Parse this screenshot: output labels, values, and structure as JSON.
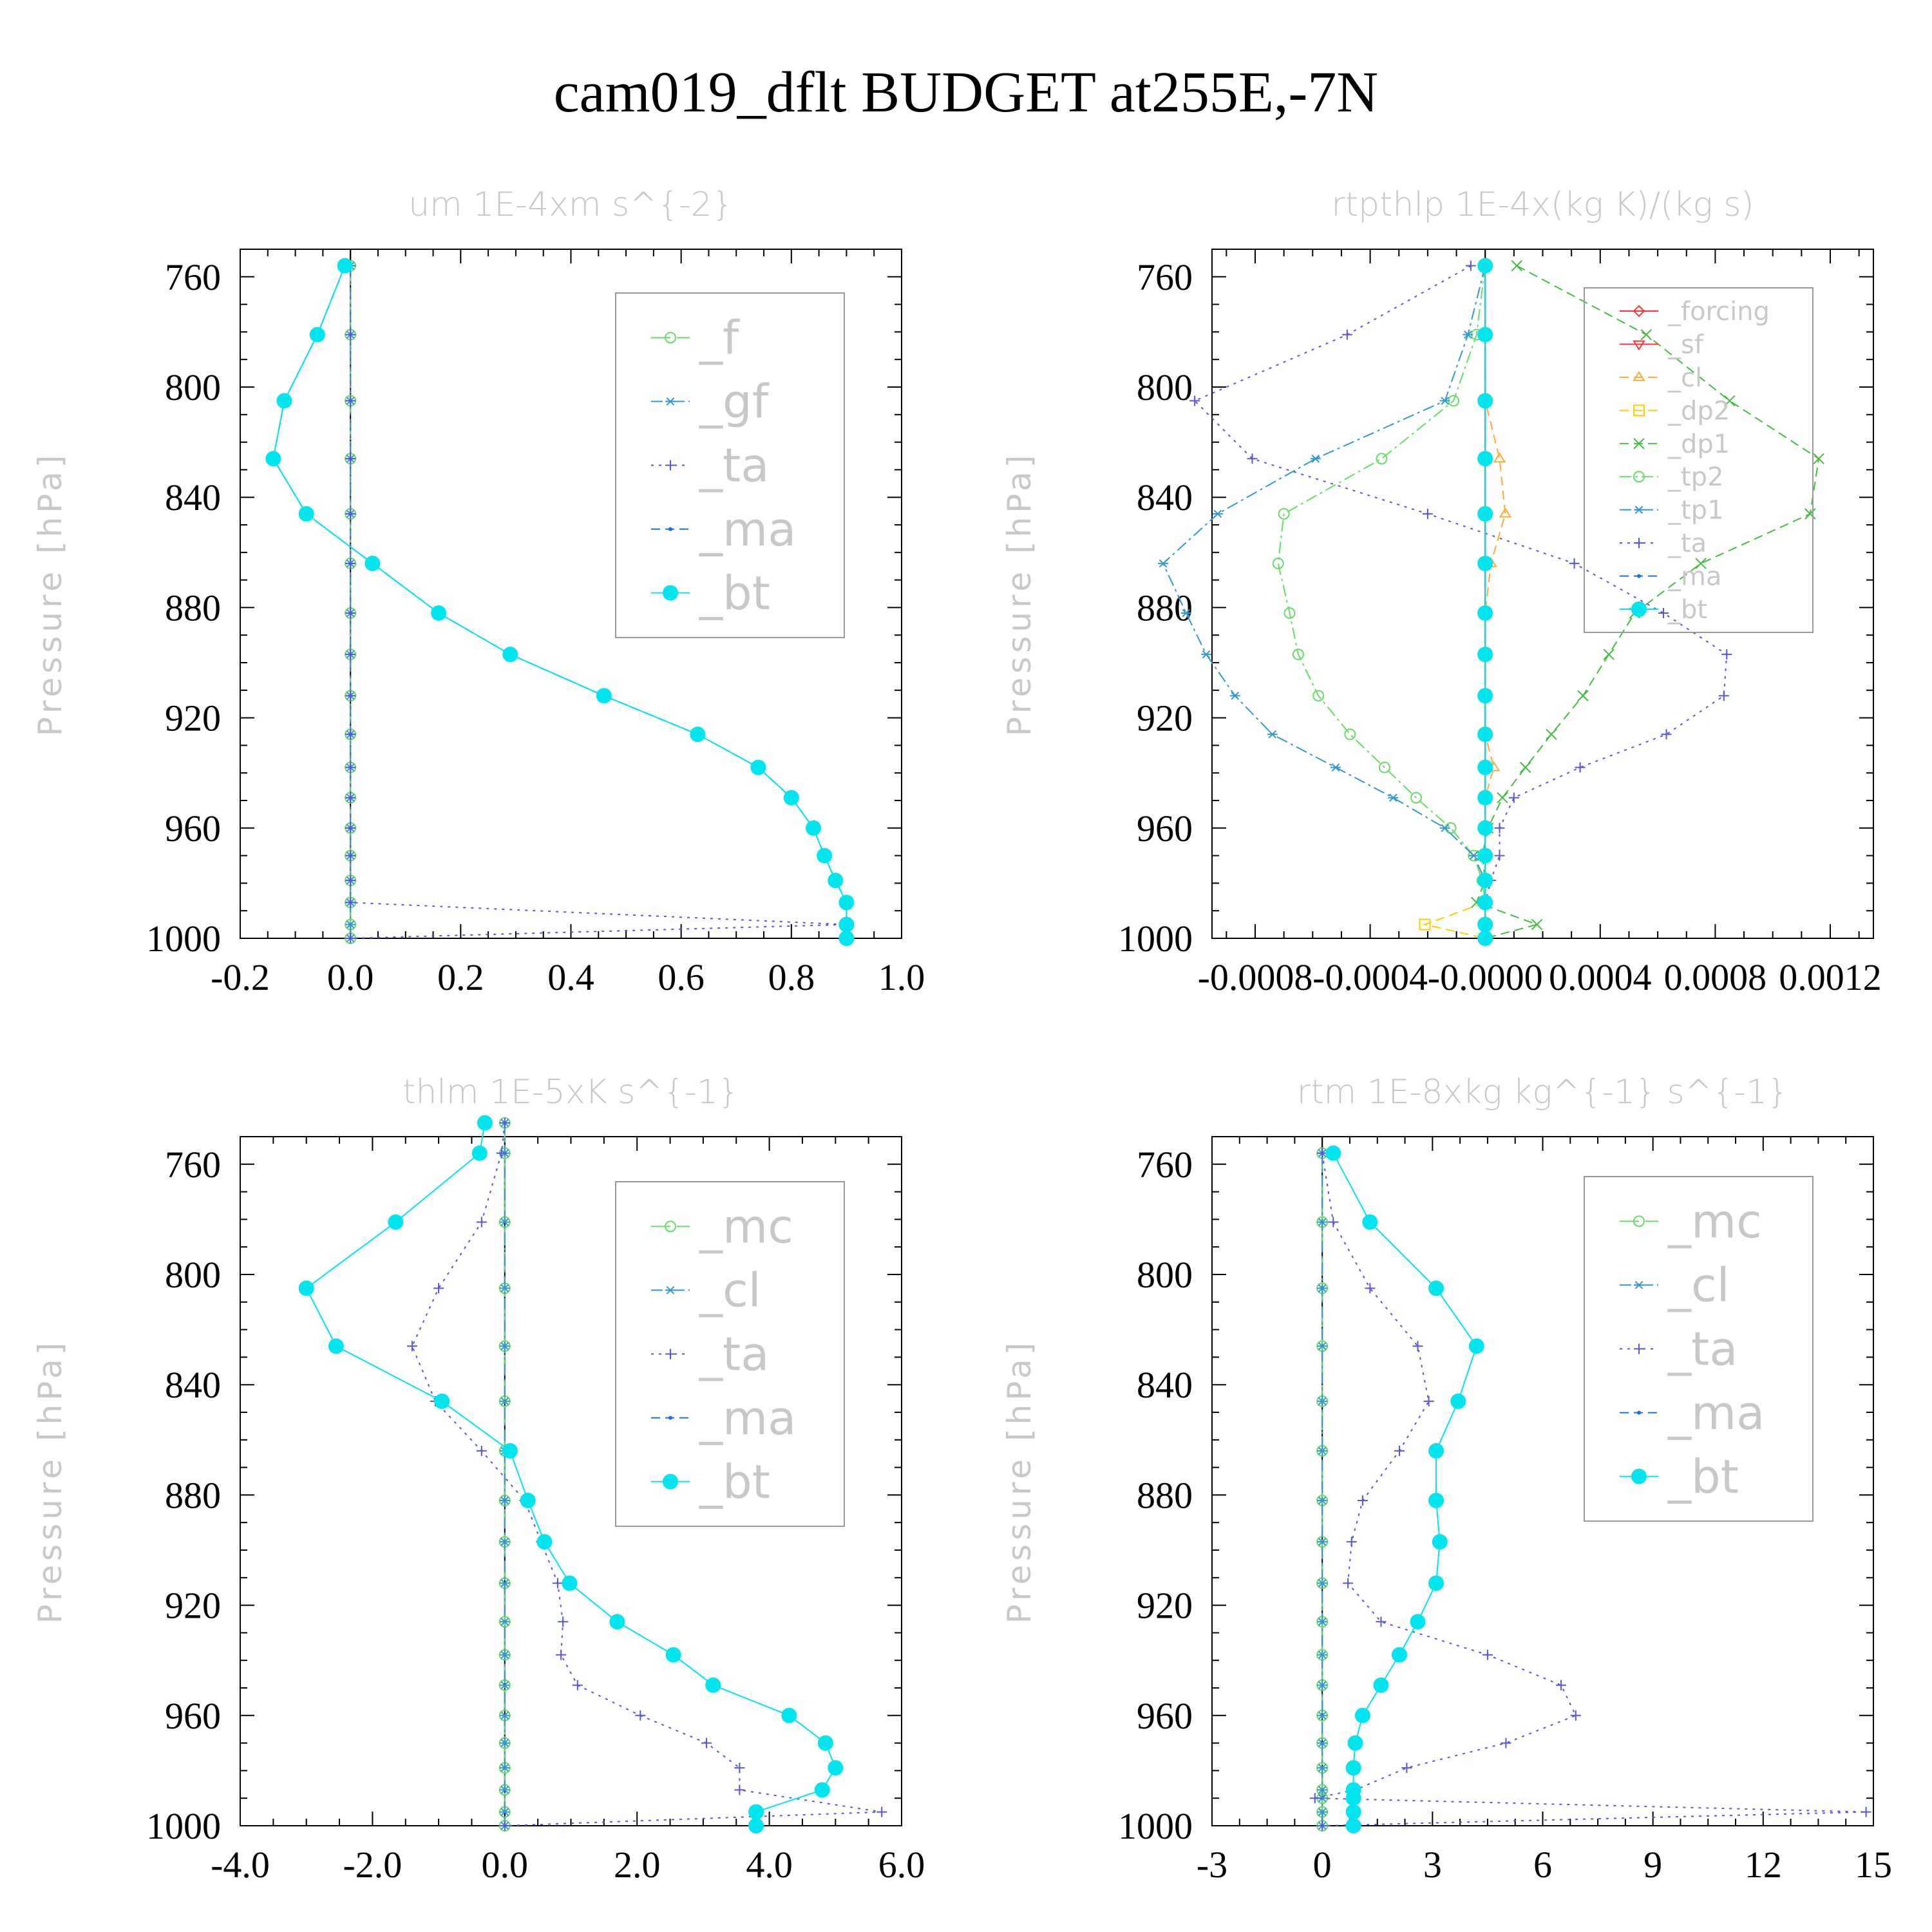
{
  "figure_title": "cam019_dflt  BUDGET at255E,-7N",
  "ylabel": "Pressure [hPa]",
  "colors": {
    "f": "#66dd66",
    "gf": "#3399cc",
    "ta": "#5555dd",
    "ma": "#1a6fd8",
    "bt": "#00e5ee",
    "forcing": "#ff3333",
    "sf": "#ff3333",
    "cl": "#ffaa33",
    "dp2": "#ffcc00",
    "dp1": "#44bb44",
    "tp2": "#66dd66",
    "tp1": "#3399cc",
    "mc": "#66dd66",
    "cl_blue": "#3399cc"
  },
  "chart_data": [
    {
      "type": "line",
      "title": "um   1E-4xm s^{-2}",
      "ylabel": "Pressure [hPa]",
      "xlim": [
        -0.2,
        1.0
      ],
      "ylim": [
        1000,
        750
      ],
      "xticks": [
        "-0.2",
        "0.0",
        "0.2",
        "0.4",
        "0.6",
        "0.8",
        "1.0"
      ],
      "xtick_values": [
        -0.2,
        0.0,
        0.2,
        0.4,
        0.6,
        0.8,
        1.0
      ],
      "yticks": [
        "760",
        "800",
        "840",
        "880",
        "920",
        "960",
        "1000"
      ],
      "ytick_values": [
        760,
        800,
        840,
        880,
        920,
        960,
        1000
      ],
      "legend": {
        "position": "top-right",
        "entries": [
          "_f",
          "_gf",
          "_ta",
          "_ma",
          "_bt"
        ]
      },
      "pressure": [
        756,
        781,
        805,
        826,
        846,
        864,
        882,
        897,
        912,
        926,
        938,
        949,
        960,
        970,
        979,
        987,
        995,
        1000
      ],
      "series": [
        {
          "name": "_f",
          "color_key": "f",
          "marker": "circle-open",
          "dash": "long",
          "x": [
            0,
            0,
            0,
            0,
            0,
            0,
            0,
            0,
            0,
            0,
            0,
            0,
            0,
            0,
            0,
            0,
            0,
            0
          ]
        },
        {
          "name": "_gf",
          "color_key": "gf",
          "marker": "star",
          "dash": "dashdot",
          "x": [
            0,
            0,
            0,
            0,
            0,
            0,
            0,
            0,
            0,
            0,
            0,
            0,
            0,
            0,
            0,
            0,
            0,
            0
          ]
        },
        {
          "name": "_ta",
          "color_key": "ta",
          "marker": "plus",
          "dash": "dot",
          "x": [
            0,
            0,
            0,
            0,
            0,
            0,
            0,
            0,
            0,
            0,
            0,
            0,
            0,
            0,
            0,
            0,
            0.9,
            0
          ]
        },
        {
          "name": "_ma",
          "color_key": "ma",
          "marker": "dot",
          "dash": "dash",
          "x": [
            -0.01,
            -0.06,
            -0.12,
            -0.14,
            -0.08,
            0.04,
            0.16,
            0.29,
            0.46,
            0.63,
            0.74,
            0.8,
            0.84,
            0.86,
            0.88,
            0.9,
            0.9,
            0.9
          ]
        },
        {
          "name": "_bt",
          "color_key": "bt",
          "marker": "filled-circle",
          "dash": "solid",
          "x": [
            -0.01,
            -0.06,
            -0.12,
            -0.14,
            -0.08,
            0.04,
            0.16,
            0.29,
            0.46,
            0.63,
            0.74,
            0.8,
            0.84,
            0.86,
            0.88,
            0.9,
            0.9,
            0.9
          ]
        }
      ]
    },
    {
      "type": "line",
      "title": "rtpthlp   1E-4x(kg K)/(kg s)",
      "ylabel": "Pressure [hPa]",
      "xlim": [
        -0.00095,
        0.00135
      ],
      "ylim": [
        1000,
        750
      ],
      "xticks": [
        "-0.0008",
        "-0.0004",
        "-0.0000",
        "0.0004",
        "0.0008",
        "0.0012"
      ],
      "xtick_values": [
        -0.0008,
        -0.0004,
        0.0,
        0.0004,
        0.0008,
        0.0012
      ],
      "yticks": [
        "760",
        "800",
        "840",
        "880",
        "920",
        "960",
        "1000"
      ],
      "ytick_values": [
        760,
        800,
        840,
        880,
        920,
        960,
        1000
      ],
      "legend": {
        "position": "top-right",
        "entries": [
          "_forcing",
          "_sf",
          "_cl",
          "_dp2",
          "_dp1",
          "_tp2",
          "_tp1",
          "_ta",
          "_ma",
          "_bt"
        ]
      },
      "pressure": [
        756,
        781,
        805,
        826,
        846,
        864,
        882,
        897,
        912,
        926,
        938,
        949,
        960,
        970,
        979,
        987,
        995,
        1000
      ],
      "series": [
        {
          "name": "_forcing",
          "color_key": "forcing",
          "marker": "diamond",
          "dash": "solid",
          "x": [
            0,
            0,
            0,
            0,
            0,
            0,
            0,
            0,
            0,
            0,
            0,
            0,
            0,
            0,
            0,
            0,
            0,
            0
          ]
        },
        {
          "name": "_sf",
          "color_key": "sf",
          "marker": "triangle-down",
          "dash": "solid",
          "x": [
            0,
            0,
            0,
            0,
            0,
            0,
            0,
            0,
            0,
            0,
            0,
            0,
            0,
            0,
            0,
            0,
            0,
            0
          ]
        },
        {
          "name": "_cl",
          "color_key": "cl",
          "marker": "triangle-up",
          "dash": "dash",
          "x": [
            0,
            0,
            0,
            5e-05,
            7e-05,
            2e-05,
            0,
            0,
            0,
            0,
            3e-05,
            0,
            0,
            0,
            0,
            0,
            0,
            0
          ]
        },
        {
          "name": "_dp2",
          "color_key": "dp2",
          "marker": "square",
          "dash": "dash",
          "x": [
            0,
            0,
            0,
            0,
            0,
            0,
            0,
            0,
            0,
            0,
            0,
            0,
            0,
            0,
            0,
            0,
            -0.00021,
            0
          ]
        },
        {
          "name": "_dp1",
          "color_key": "dp1",
          "marker": "x",
          "dash": "dash",
          "x": [
            0.00011,
            0.00056,
            0.00085,
            0.00116,
            0.00113,
            0.00075,
            0.00052,
            0.00043,
            0.00034,
            0.00023,
            0.00014,
            6e-05,
            1e-05,
            -1e-05,
            0,
            -3e-05,
            0.00018,
            0
          ]
        },
        {
          "name": "_tp2",
          "color_key": "tp2",
          "marker": "circle-open",
          "dash": "dashdot",
          "x": [
            0,
            -3e-05,
            -0.00011,
            -0.00036,
            -0.0007,
            -0.00072,
            -0.00068,
            -0.00065,
            -0.00058,
            -0.00047,
            -0.00035,
            -0.00024,
            -0.00012,
            -4e-05,
            -1e-05,
            0,
            0,
            0
          ]
        },
        {
          "name": "_tp1",
          "color_key": "tp1",
          "marker": "star",
          "dash": "dashdot",
          "x": [
            0,
            -6e-05,
            -0.00014,
            -0.00059,
            -0.00093,
            -0.00112,
            -0.00104,
            -0.00097,
            -0.00087,
            -0.00074,
            -0.00052,
            -0.00032,
            -0.00014,
            -4e-05,
            0,
            0,
            0,
            0
          ]
        },
        {
          "name": "_ta",
          "color_key": "ta",
          "marker": "plus",
          "dash": "dot",
          "x": [
            -5e-05,
            -0.00048,
            -0.00101,
            -0.00081,
            -0.0002,
            0.00031,
            0.00062,
            0.00084,
            0.00083,
            0.00063,
            0.00033,
            0.0001,
            5e-05,
            5e-05,
            2e-05,
            0,
            0,
            0
          ]
        },
        {
          "name": "_ma",
          "color_key": "ma",
          "marker": "dot",
          "dash": "dash",
          "x": [
            0,
            0,
            0,
            0,
            0,
            0,
            0,
            0,
            0,
            0,
            0,
            0,
            0,
            0,
            0,
            0,
            0,
            0
          ]
        },
        {
          "name": "_bt",
          "color_key": "bt",
          "marker": "filled-circle",
          "dash": "solid",
          "x": [
            0,
            0,
            0,
            0,
            0,
            0,
            0,
            0,
            0,
            0,
            0,
            0,
            0,
            0,
            0,
            0,
            0,
            0
          ]
        }
      ]
    },
    {
      "type": "line",
      "title": "thlm   1E-5xK s^{-1}",
      "ylabel": "Pressure [hPa]",
      "xlim": [
        -4.0,
        6.0
      ],
      "ylim": [
        1000,
        750
      ],
      "xticks": [
        "-4.0",
        "-2.0",
        "0.0",
        "2.0",
        "4.0",
        "6.0"
      ],
      "xtick_values": [
        -4.0,
        -2.0,
        0.0,
        2.0,
        4.0,
        6.0
      ],
      "yticks": [
        "760",
        "800",
        "840",
        "880",
        "920",
        "960",
        "1000"
      ],
      "ytick_values": [
        760,
        800,
        840,
        880,
        920,
        960,
        1000
      ],
      "legend": {
        "position": "top-right",
        "entries": [
          "_mc",
          "_cl",
          "_ta",
          "_ma",
          "_bt"
        ]
      },
      "pressure": [
        745,
        756,
        781,
        805,
        826,
        846,
        864,
        882,
        897,
        912,
        926,
        938,
        949,
        960,
        970,
        979,
        987,
        995,
        1000
      ],
      "series": [
        {
          "name": "_mc",
          "color_key": "mc",
          "marker": "circle-open",
          "dash": "long",
          "x": [
            0,
            0,
            0,
            0,
            0,
            0,
            0,
            0,
            0,
            0,
            0,
            0,
            0,
            0,
            0,
            0,
            0,
            0,
            0
          ]
        },
        {
          "name": "_cl",
          "color_key": "cl_blue",
          "marker": "star",
          "dash": "dashdot",
          "x": [
            0,
            0,
            0,
            0,
            0,
            0,
            0,
            0,
            0,
            0,
            0,
            0,
            0,
            0,
            0,
            0,
            0,
            0,
            0
          ]
        },
        {
          "name": "_ta",
          "color_key": "ta",
          "marker": "plus",
          "dash": "dot",
          "x": [
            0,
            -0.05,
            -0.35,
            -1.0,
            -1.4,
            -1.05,
            -0.35,
            0.3,
            0.55,
            0.8,
            0.88,
            0.85,
            1.1,
            2.05,
            3.05,
            3.55,
            3.55,
            5.7,
            0
          ]
        },
        {
          "name": "_ma",
          "color_key": "ma",
          "marker": "dot",
          "dash": "dash",
          "x": [
            null,
            null,
            null,
            null,
            null,
            null,
            null,
            null,
            null,
            null,
            null,
            null,
            null,
            null,
            null,
            null,
            null,
            null,
            null
          ]
        },
        {
          "name": "_bt",
          "color_key": "bt",
          "marker": "filled-circle",
          "dash": "solid",
          "x": [
            -0.3,
            -0.38,
            -1.65,
            -3.0,
            -2.55,
            -0.95,
            0.08,
            0.35,
            0.6,
            0.98,
            1.7,
            2.55,
            3.15,
            4.3,
            4.85,
            5.0,
            4.8,
            3.8,
            3.8
          ]
        }
      ]
    },
    {
      "type": "line",
      "title": "rtm   1E-8xkg kg^{-1} s^{-1}",
      "ylabel": "Pressure [hPa]",
      "xlim": [
        -3,
        15
      ],
      "ylim": [
        1000,
        750
      ],
      "xticks": [
        "-3",
        "0",
        "3",
        "6",
        "9",
        "12",
        "15"
      ],
      "xtick_values": [
        -3,
        0,
        3,
        6,
        9,
        12,
        15
      ],
      "yticks": [
        "760",
        "800",
        "840",
        "880",
        "920",
        "960",
        "1000"
      ],
      "ytick_values": [
        760,
        800,
        840,
        880,
        920,
        960,
        1000
      ],
      "legend": {
        "position": "top-right",
        "entries": [
          "_mc",
          "_cl",
          "_ta",
          "_ma",
          "_bt"
        ]
      },
      "pressure": [
        756,
        781,
        805,
        826,
        846,
        864,
        882,
        897,
        912,
        926,
        938,
        949,
        960,
        970,
        979,
        987,
        990,
        995,
        1000
      ],
      "series": [
        {
          "name": "_mc",
          "color_key": "mc",
          "marker": "circle-open",
          "dash": "long",
          "x": [
            0,
            0,
            0,
            0,
            0,
            0,
            0,
            0,
            0,
            0,
            0,
            0,
            0,
            0,
            0,
            0,
            0,
            0,
            0
          ]
        },
        {
          "name": "_cl",
          "color_key": "cl_blue",
          "marker": "star",
          "dash": "dashdot",
          "x": [
            0,
            0,
            0,
            0,
            0,
            0,
            0,
            0,
            0,
            0,
            0,
            0,
            0,
            0,
            0,
            0,
            0,
            0,
            0
          ]
        },
        {
          "name": "_ta",
          "color_key": "ta",
          "marker": "plus",
          "dash": "dot",
          "x": [
            0,
            0.3,
            1.3,
            2.6,
            2.9,
            2.1,
            1.1,
            0.8,
            0.7,
            1.6,
            4.5,
            6.5,
            6.9,
            5.0,
            2.3,
            0.9,
            -0.2,
            14.8,
            0
          ]
        },
        {
          "name": "_ma",
          "color_key": "ma",
          "marker": "dot",
          "dash": "dash",
          "x": [
            null,
            null,
            null,
            null,
            null,
            null,
            null,
            null,
            null,
            null,
            null,
            null,
            null,
            null,
            null,
            null,
            null,
            null,
            null
          ]
        },
        {
          "name": "_bt",
          "color_key": "bt",
          "marker": "filled-circle",
          "dash": "solid",
          "x": [
            0.3,
            1.3,
            3.1,
            4.2,
            3.7,
            3.1,
            3.1,
            3.2,
            3.1,
            2.6,
            2.1,
            1.6,
            1.1,
            0.9,
            0.85,
            0.85,
            0.85,
            0.85,
            0.85
          ]
        }
      ]
    }
  ]
}
